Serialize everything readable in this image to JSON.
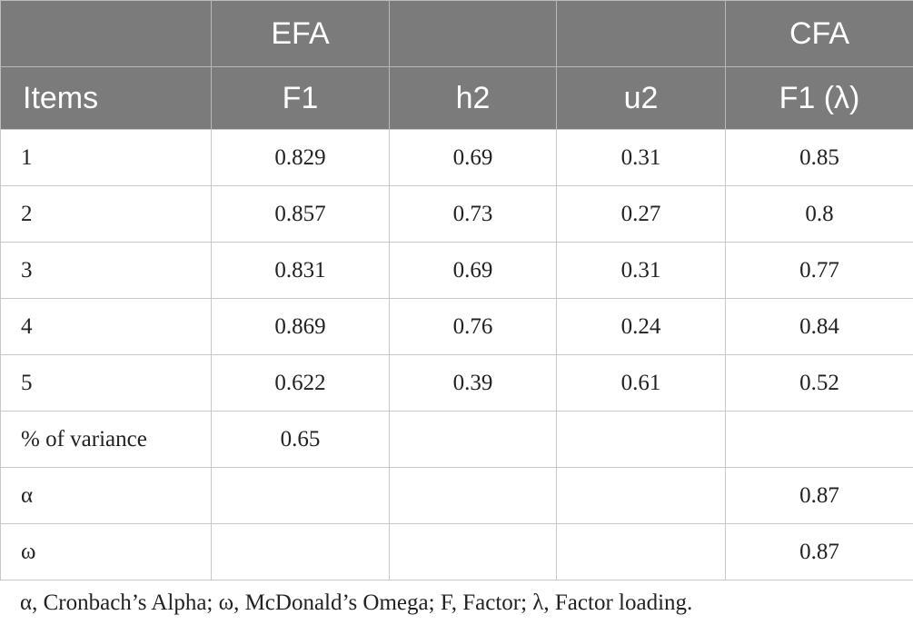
{
  "table": {
    "group_headers": [
      "",
      "EFA",
      "",
      "",
      "CFA"
    ],
    "column_headers": [
      "Items",
      "F1",
      "h2",
      "u2",
      "F1 (λ)"
    ],
    "rows": [
      [
        "1",
        "0.829",
        "0.69",
        "0.31",
        "0.85"
      ],
      [
        "2",
        "0.857",
        "0.73",
        "0.27",
        "0.8"
      ],
      [
        "3",
        "0.831",
        "0.69",
        "0.31",
        "0.77"
      ],
      [
        "4",
        "0.869",
        "0.76",
        "0.24",
        "0.84"
      ],
      [
        "5",
        "0.622",
        "0.39",
        "0.61",
        "0.52"
      ],
      [
        "% of variance",
        "0.65",
        "",
        "",
        ""
      ],
      [
        "α",
        "",
        "",
        "",
        "0.87"
      ],
      [
        "ω",
        "",
        "",
        "",
        "0.87"
      ]
    ]
  },
  "footnote": "α, Cronbach’s Alpha; ω, McDonald’s Omega; F, Factor; λ, Factor loading."
}
